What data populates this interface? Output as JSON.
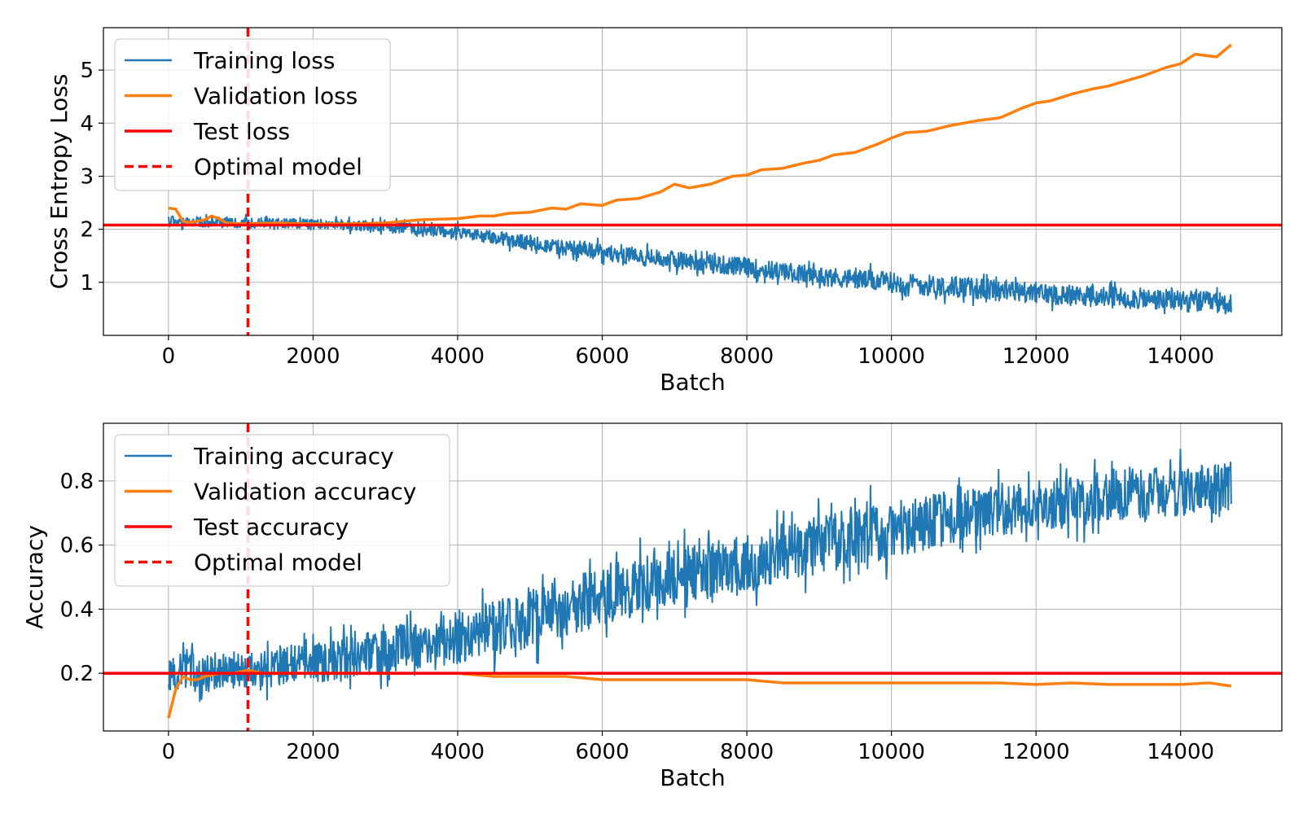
{
  "chart_data": [
    {
      "type": "line",
      "title": "",
      "xlabel": "Batch",
      "ylabel": "Cross Entropy Loss",
      "xlim": [
        -900,
        15400
      ],
      "ylim": [
        0,
        5.8
      ],
      "x_ticks": [
        0,
        2000,
        4000,
        6000,
        8000,
        10000,
        12000,
        14000
      ],
      "y_ticks": [
        1,
        2,
        3,
        4,
        5
      ],
      "grid": true,
      "legend_position": "top-left",
      "colors": {
        "training": "#1f77b4",
        "validation": "#ff7f0e",
        "test": "#ff0000",
        "optimal": "#ff0000"
      },
      "series": [
        {
          "name": "Training loss",
          "kind": "noisy_band",
          "x_range": [
            0,
            14700
          ],
          "trend_x": [
            0,
            2000,
            3000,
            4000,
            5000,
            6000,
            7000,
            8000,
            9000,
            10000,
            11000,
            12000,
            13000,
            14000,
            14700
          ],
          "trend_y": [
            2.15,
            2.1,
            2.05,
            1.95,
            1.75,
            1.55,
            1.42,
            1.28,
            1.12,
            1.0,
            0.9,
            0.8,
            0.72,
            0.65,
            0.6
          ],
          "spread": [
            0.1,
            0.1,
            0.1,
            0.12,
            0.14,
            0.16,
            0.17,
            0.18,
            0.18,
            0.19,
            0.2,
            0.2,
            0.2,
            0.2,
            0.2
          ]
        },
        {
          "name": "Validation loss",
          "kind": "line",
          "x": [
            0,
            100,
            200,
            300,
            400,
            500,
            600,
            700,
            800,
            1000,
            1500,
            2000,
            2500,
            3000,
            3500,
            4000,
            4300,
            4500,
            4700,
            5000,
            5300,
            5500,
            5700,
            6000,
            6200,
            6500,
            6800,
            7000,
            7200,
            7500,
            7800,
            8000,
            8200,
            8500,
            8800,
            9000,
            9200,
            9500,
            9800,
            10000,
            10200,
            10500,
            10800,
            11000,
            11200,
            11500,
            11800,
            12000,
            12200,
            12500,
            12800,
            13000,
            13200,
            13500,
            13800,
            14000,
            14200,
            14500,
            14700
          ],
          "y": [
            2.4,
            2.38,
            2.15,
            2.13,
            2.15,
            2.18,
            2.25,
            2.2,
            2.12,
            2.1,
            2.12,
            2.1,
            2.1,
            2.12,
            2.18,
            2.2,
            2.25,
            2.25,
            2.3,
            2.32,
            2.4,
            2.38,
            2.48,
            2.45,
            2.55,
            2.58,
            2.7,
            2.85,
            2.78,
            2.85,
            3.0,
            3.02,
            3.12,
            3.15,
            3.25,
            3.3,
            3.4,
            3.45,
            3.6,
            3.72,
            3.82,
            3.85,
            3.95,
            4.0,
            4.05,
            4.1,
            4.28,
            4.38,
            4.42,
            4.55,
            4.65,
            4.7,
            4.78,
            4.9,
            5.05,
            5.12,
            5.3,
            5.25,
            5.48
          ]
        },
        {
          "name": "Test loss",
          "kind": "hline",
          "y": 2.08
        },
        {
          "name": "Optimal model",
          "kind": "vline",
          "x": 1100
        }
      ]
    },
    {
      "type": "line",
      "title": "",
      "xlabel": "Batch",
      "ylabel": "Accuracy",
      "xlim": [
        -900,
        15400
      ],
      "ylim": [
        0.02,
        0.98
      ],
      "x_ticks": [
        0,
        2000,
        4000,
        6000,
        8000,
        10000,
        12000,
        14000
      ],
      "y_ticks": [
        0.2,
        0.4,
        0.6,
        0.8
      ],
      "grid": true,
      "legend_position": "top-left",
      "colors": {
        "training": "#1f77b4",
        "validation": "#ff7f0e",
        "test": "#ff0000",
        "optimal": "#ff0000"
      },
      "series": [
        {
          "name": "Training accuracy",
          "kind": "noisy_band",
          "x_range": [
            0,
            14700
          ],
          "trend_x": [
            0,
            1000,
            2000,
            3000,
            4000,
            5000,
            6000,
            7000,
            8000,
            9000,
            10000,
            11000,
            12000,
            13000,
            14000,
            14700
          ],
          "trend_y": [
            0.2,
            0.21,
            0.23,
            0.27,
            0.31,
            0.37,
            0.44,
            0.5,
            0.55,
            0.6,
            0.65,
            0.69,
            0.72,
            0.75,
            0.77,
            0.78
          ],
          "spread": [
            0.06,
            0.06,
            0.06,
            0.07,
            0.08,
            0.09,
            0.09,
            0.09,
            0.09,
            0.09,
            0.09,
            0.08,
            0.08,
            0.08,
            0.08,
            0.08
          ]
        },
        {
          "name": "Validation accuracy",
          "kind": "line",
          "x": [
            0,
            100,
            200,
            300,
            400,
            500,
            700,
            900,
            1100,
            1300,
            1500,
            2000,
            2500,
            3000,
            3500,
            4000,
            4500,
            5000,
            5500,
            6000,
            6500,
            7000,
            7500,
            8000,
            8500,
            9000,
            9500,
            10000,
            10500,
            11000,
            11500,
            12000,
            12500,
            13000,
            13500,
            14000,
            14400,
            14700
          ],
          "y": [
            0.06,
            0.15,
            0.19,
            0.18,
            0.18,
            0.19,
            0.2,
            0.2,
            0.21,
            0.2,
            0.2,
            0.2,
            0.2,
            0.2,
            0.2,
            0.2,
            0.19,
            0.19,
            0.19,
            0.18,
            0.18,
            0.18,
            0.18,
            0.18,
            0.17,
            0.17,
            0.17,
            0.17,
            0.17,
            0.17,
            0.17,
            0.165,
            0.17,
            0.165,
            0.165,
            0.165,
            0.17,
            0.16
          ]
        },
        {
          "name": "Test accuracy",
          "kind": "hline",
          "y": 0.2
        },
        {
          "name": "Optimal model",
          "kind": "vline",
          "x": 1100
        }
      ]
    }
  ]
}
